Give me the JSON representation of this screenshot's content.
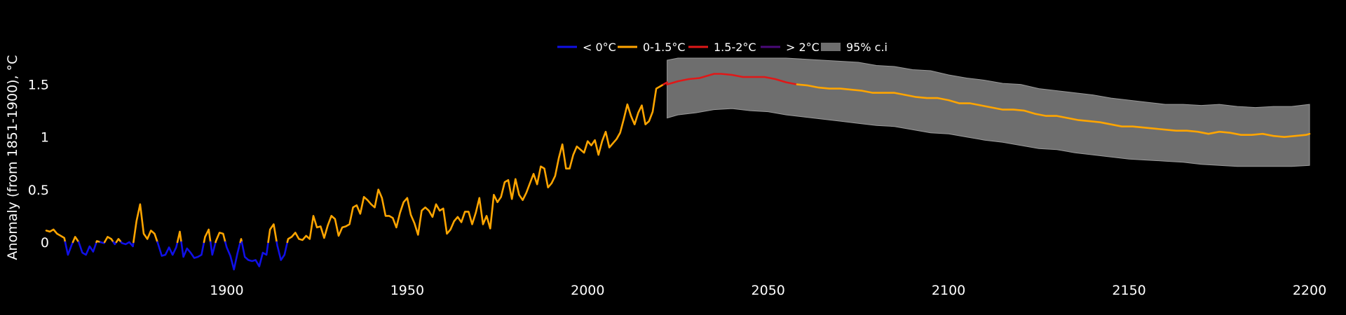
{
  "chart_data": {
    "type": "line",
    "ylabel": "Anomaly (from 1851-1900), °C",
    "xlim": [
      1850,
      2200
    ],
    "ylim": [
      -0.28,
      1.75
    ],
    "x_ticks": [
      "1900",
      "1950",
      "2000",
      "2050",
      "2100",
      "2150",
      "2200"
    ],
    "y_ticks": [
      "0",
      "0.5",
      "1",
      "1.5"
    ],
    "grid": false,
    "legend_position": "top-center",
    "legend": [
      {
        "label": "< 0°C",
        "color": "#1010e6"
      },
      {
        "label": "0-1.5°C",
        "color": "#ffa500"
      },
      {
        "label": "1.5-2°C",
        "color": "#e01818"
      },
      {
        "label": "> 2°C",
        "color": "#4b0a7a"
      },
      {
        "label": "95% c.i",
        "color": "#6e6e6e"
      }
    ],
    "color_thresholds": [
      0,
      1.5,
      2
    ],
    "observed": [
      [
        1850,
        0.11
      ],
      [
        1851,
        0.1
      ],
      [
        1852,
        0.12
      ],
      [
        1853,
        0.08
      ],
      [
        1854,
        0.06
      ],
      [
        1855,
        0.04
      ],
      [
        1856,
        -0.12
      ],
      [
        1857,
        -0.03
      ],
      [
        1858,
        0.05
      ],
      [
        1859,
        0.0
      ],
      [
        1860,
        -0.1
      ],
      [
        1861,
        -0.12
      ],
      [
        1862,
        -0.04
      ],
      [
        1863,
        -0.09
      ],
      [
        1864,
        0.01
      ],
      [
        1865,
        0.0
      ],
      [
        1866,
        -0.01
      ],
      [
        1867,
        0.05
      ],
      [
        1868,
        0.03
      ],
      [
        1869,
        -0.02
      ],
      [
        1870,
        0.03
      ],
      [
        1871,
        -0.01
      ],
      [
        1872,
        -0.02
      ],
      [
        1873,
        0.0
      ],
      [
        1874,
        -0.04
      ],
      [
        1875,
        0.2
      ],
      [
        1876,
        0.36
      ],
      [
        1877,
        0.08
      ],
      [
        1878,
        0.03
      ],
      [
        1879,
        0.11
      ],
      [
        1880,
        0.08
      ],
      [
        1881,
        -0.02
      ],
      [
        1882,
        -0.13
      ],
      [
        1883,
        -0.12
      ],
      [
        1884,
        -0.05
      ],
      [
        1885,
        -0.12
      ],
      [
        1886,
        -0.05
      ],
      [
        1887,
        0.1
      ],
      [
        1888,
        -0.14
      ],
      [
        1889,
        -0.06
      ],
      [
        1890,
        -0.1
      ],
      [
        1891,
        -0.15
      ],
      [
        1892,
        -0.14
      ],
      [
        1893,
        -0.12
      ],
      [
        1894,
        0.05
      ],
      [
        1895,
        0.12
      ],
      [
        1896,
        -0.12
      ],
      [
        1897,
        0.01
      ],
      [
        1898,
        0.09
      ],
      [
        1899,
        0.08
      ],
      [
        1900,
        -0.05
      ],
      [
        1901,
        -0.13
      ],
      [
        1902,
        -0.26
      ],
      [
        1903,
        -0.1
      ],
      [
        1904,
        0.03
      ],
      [
        1905,
        -0.14
      ],
      [
        1906,
        -0.17
      ],
      [
        1907,
        -0.18
      ],
      [
        1908,
        -0.17
      ],
      [
        1909,
        -0.23
      ],
      [
        1910,
        -0.1
      ],
      [
        1911,
        -0.12
      ],
      [
        1912,
        0.12
      ],
      [
        1913,
        0.17
      ],
      [
        1914,
        -0.03
      ],
      [
        1915,
        -0.17
      ],
      [
        1916,
        -0.12
      ],
      [
        1917,
        0.03
      ],
      [
        1918,
        0.05
      ],
      [
        1919,
        0.09
      ],
      [
        1920,
        0.03
      ],
      [
        1921,
        0.02
      ],
      [
        1922,
        0.06
      ],
      [
        1923,
        0.03
      ],
      [
        1924,
        0.25
      ],
      [
        1925,
        0.14
      ],
      [
        1926,
        0.15
      ],
      [
        1927,
        0.04
      ],
      [
        1928,
        0.16
      ],
      [
        1929,
        0.25
      ],
      [
        1930,
        0.22
      ],
      [
        1931,
        0.06
      ],
      [
        1932,
        0.14
      ],
      [
        1933,
        0.15
      ],
      [
        1934,
        0.17
      ],
      [
        1935,
        0.33
      ],
      [
        1936,
        0.35
      ],
      [
        1937,
        0.27
      ],
      [
        1938,
        0.43
      ],
      [
        1939,
        0.4
      ],
      [
        1940,
        0.36
      ],
      [
        1941,
        0.33
      ],
      [
        1942,
        0.5
      ],
      [
        1943,
        0.42
      ],
      [
        1944,
        0.25
      ],
      [
        1945,
        0.25
      ],
      [
        1946,
        0.23
      ],
      [
        1947,
        0.14
      ],
      [
        1948,
        0.28
      ],
      [
        1949,
        0.38
      ],
      [
        1950,
        0.42
      ],
      [
        1951,
        0.26
      ],
      [
        1952,
        0.18
      ],
      [
        1953,
        0.07
      ],
      [
        1954,
        0.3
      ],
      [
        1955,
        0.33
      ],
      [
        1956,
        0.3
      ],
      [
        1957,
        0.24
      ],
      [
        1958,
        0.36
      ],
      [
        1959,
        0.3
      ],
      [
        1960,
        0.32
      ],
      [
        1961,
        0.08
      ],
      [
        1962,
        0.12
      ],
      [
        1963,
        0.2
      ],
      [
        1964,
        0.24
      ],
      [
        1965,
        0.19
      ],
      [
        1966,
        0.29
      ],
      [
        1967,
        0.29
      ],
      [
        1968,
        0.17
      ],
      [
        1969,
        0.28
      ],
      [
        1970,
        0.42
      ],
      [
        1971,
        0.17
      ],
      [
        1972,
        0.25
      ],
      [
        1973,
        0.13
      ],
      [
        1974,
        0.45
      ],
      [
        1975,
        0.38
      ],
      [
        1976,
        0.43
      ],
      [
        1977,
        0.57
      ],
      [
        1978,
        0.59
      ],
      [
        1979,
        0.41
      ],
      [
        1980,
        0.6
      ],
      [
        1981,
        0.45
      ],
      [
        1982,
        0.4
      ],
      [
        1983,
        0.47
      ],
      [
        1984,
        0.56
      ],
      [
        1985,
        0.65
      ],
      [
        1986,
        0.55
      ],
      [
        1987,
        0.72
      ],
      [
        1988,
        0.7
      ],
      [
        1989,
        0.52
      ],
      [
        1990,
        0.56
      ],
      [
        1991,
        0.63
      ],
      [
        1992,
        0.8
      ],
      [
        1993,
        0.93
      ],
      [
        1994,
        0.7
      ],
      [
        1995,
        0.7
      ],
      [
        1996,
        0.83
      ],
      [
        1997,
        0.91
      ],
      [
        1998,
        0.88
      ],
      [
        1999,
        0.85
      ],
      [
        2000,
        0.96
      ],
      [
        2001,
        0.92
      ],
      [
        2002,
        0.97
      ],
      [
        2003,
        0.83
      ],
      [
        2004,
        0.96
      ],
      [
        2005,
        1.05
      ],
      [
        2006,
        0.9
      ],
      [
        2007,
        0.94
      ],
      [
        2008,
        0.98
      ],
      [
        2009,
        1.04
      ],
      [
        2010,
        1.17
      ],
      [
        2011,
        1.31
      ],
      [
        2012,
        1.2
      ],
      [
        2013,
        1.12
      ],
      [
        2014,
        1.23
      ],
      [
        2015,
        1.3
      ],
      [
        2016,
        1.12
      ],
      [
        2017,
        1.15
      ],
      [
        2018,
        1.24
      ],
      [
        2019,
        1.46
      ],
      [
        2020,
        1.48
      ],
      [
        2021,
        1.5
      ],
      [
        2022,
        1.52
      ]
    ],
    "projection": [
      [
        2022,
        1.5
      ],
      [
        2025,
        1.53
      ],
      [
        2028,
        1.55
      ],
      [
        2031,
        1.56
      ],
      [
        2033,
        1.58
      ],
      [
        2035,
        1.6
      ],
      [
        2037,
        1.6
      ],
      [
        2040,
        1.59
      ],
      [
        2043,
        1.57
      ],
      [
        2046,
        1.57
      ],
      [
        2049,
        1.57
      ],
      [
        2052,
        1.55
      ],
      [
        2055,
        1.52
      ],
      [
        2058,
        1.5
      ],
      [
        2061,
        1.49
      ],
      [
        2064,
        1.47
      ],
      [
        2067,
        1.46
      ],
      [
        2070,
        1.46
      ],
      [
        2073,
        1.45
      ],
      [
        2076,
        1.44
      ],
      [
        2079,
        1.42
      ],
      [
        2082,
        1.42
      ],
      [
        2085,
        1.42
      ],
      [
        2088,
        1.4
      ],
      [
        2091,
        1.38
      ],
      [
        2094,
        1.37
      ],
      [
        2097,
        1.37
      ],
      [
        2100,
        1.35
      ],
      [
        2103,
        1.32
      ],
      [
        2106,
        1.32
      ],
      [
        2109,
        1.3
      ],
      [
        2112,
        1.28
      ],
      [
        2115,
        1.26
      ],
      [
        2118,
        1.26
      ],
      [
        2121,
        1.25
      ],
      [
        2124,
        1.22
      ],
      [
        2127,
        1.2
      ],
      [
        2130,
        1.2
      ],
      [
        2133,
        1.18
      ],
      [
        2136,
        1.16
      ],
      [
        2139,
        1.15
      ],
      [
        2142,
        1.14
      ],
      [
        2145,
        1.12
      ],
      [
        2148,
        1.1
      ],
      [
        2151,
        1.1
      ],
      [
        2154,
        1.09
      ],
      [
        2157,
        1.08
      ],
      [
        2160,
        1.07
      ],
      [
        2163,
        1.06
      ],
      [
        2166,
        1.06
      ],
      [
        2169,
        1.05
      ],
      [
        2172,
        1.03
      ],
      [
        2175,
        1.05
      ],
      [
        2178,
        1.04
      ],
      [
        2181,
        1.02
      ],
      [
        2184,
        1.02
      ],
      [
        2187,
        1.03
      ],
      [
        2190,
        1.01
      ],
      [
        2193,
        1.0
      ],
      [
        2196,
        1.01
      ],
      [
        2199,
        1.02
      ],
      [
        2200,
        1.03
      ]
    ],
    "ci_upper": [
      [
        2022,
        1.73
      ],
      [
        2025,
        1.75
      ],
      [
        2030,
        1.75
      ],
      [
        2040,
        1.75
      ],
      [
        2050,
        1.75
      ],
      [
        2055,
        1.75
      ],
      [
        2060,
        1.74
      ],
      [
        2065,
        1.73
      ],
      [
        2070,
        1.72
      ],
      [
        2075,
        1.71
      ],
      [
        2080,
        1.68
      ],
      [
        2085,
        1.67
      ],
      [
        2090,
        1.64
      ],
      [
        2095,
        1.63
      ],
      [
        2100,
        1.59
      ],
      [
        2105,
        1.56
      ],
      [
        2110,
        1.54
      ],
      [
        2115,
        1.51
      ],
      [
        2120,
        1.5
      ],
      [
        2125,
        1.46
      ],
      [
        2130,
        1.44
      ],
      [
        2135,
        1.42
      ],
      [
        2140,
        1.4
      ],
      [
        2145,
        1.37
      ],
      [
        2150,
        1.35
      ],
      [
        2155,
        1.33
      ],
      [
        2160,
        1.31
      ],
      [
        2165,
        1.31
      ],
      [
        2170,
        1.3
      ],
      [
        2175,
        1.31
      ],
      [
        2180,
        1.29
      ],
      [
        2185,
        1.28
      ],
      [
        2190,
        1.29
      ],
      [
        2195,
        1.29
      ],
      [
        2200,
        1.31
      ]
    ],
    "ci_lower": [
      [
        2022,
        1.18
      ],
      [
        2025,
        1.21
      ],
      [
        2030,
        1.23
      ],
      [
        2035,
        1.26
      ],
      [
        2040,
        1.27
      ],
      [
        2045,
        1.25
      ],
      [
        2050,
        1.24
      ],
      [
        2055,
        1.21
      ],
      [
        2060,
        1.19
      ],
      [
        2065,
        1.17
      ],
      [
        2070,
        1.15
      ],
      [
        2075,
        1.13
      ],
      [
        2080,
        1.11
      ],
      [
        2085,
        1.1
      ],
      [
        2090,
        1.07
      ],
      [
        2095,
        1.04
      ],
      [
        2100,
        1.03
      ],
      [
        2105,
        1.0
      ],
      [
        2110,
        0.97
      ],
      [
        2115,
        0.95
      ],
      [
        2120,
        0.92
      ],
      [
        2125,
        0.89
      ],
      [
        2130,
        0.88
      ],
      [
        2135,
        0.85
      ],
      [
        2140,
        0.83
      ],
      [
        2145,
        0.81
      ],
      [
        2150,
        0.79
      ],
      [
        2155,
        0.78
      ],
      [
        2160,
        0.77
      ],
      [
        2165,
        0.76
      ],
      [
        2170,
        0.74
      ],
      [
        2175,
        0.73
      ],
      [
        2180,
        0.72
      ],
      [
        2185,
        0.72
      ],
      [
        2190,
        0.72
      ],
      [
        2195,
        0.72
      ],
      [
        2200,
        0.73
      ]
    ]
  }
}
